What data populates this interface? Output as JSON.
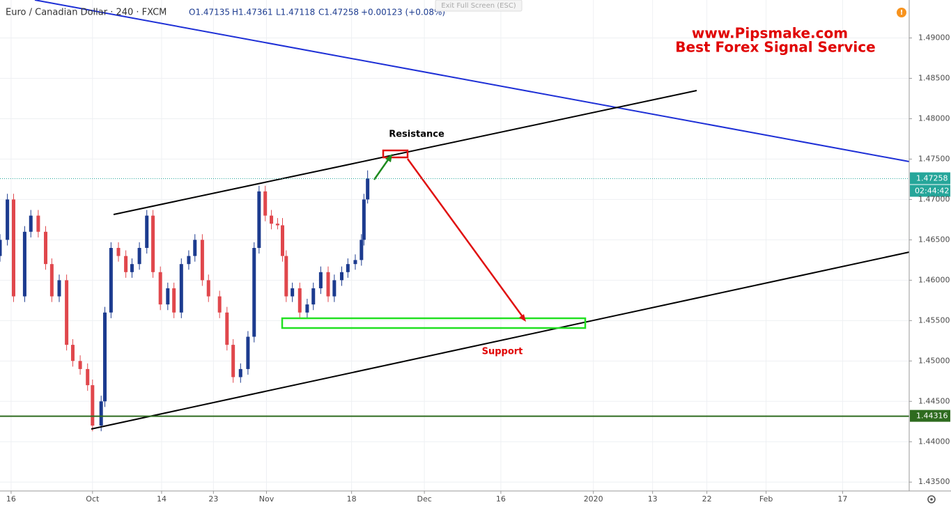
{
  "chart_data": {
    "type": "candlestick",
    "header": {
      "symbol": "Euro / Canadian Dollar · 240 · FXCM",
      "open": "O1.47135",
      "high": "H1.47361",
      "low": "L1.47118",
      "close": "C1.47258",
      "change": "+0.00123 (+0.08%)"
    },
    "exit_button": "Exit Full Screen (ESC)",
    "watermark": [
      "www.Pipsmake.com",
      "Best Forex Signal Service"
    ],
    "annotations": {
      "resistance": "Resistance",
      "support": "Support"
    },
    "up_color": "#1c3b8f",
    "down_color": "#e0474c",
    "grid": true,
    "xlim": [
      0,
      737
    ],
    "ylim": [
      1.4339,
      1.4947
    ],
    "xticks": [
      {
        "value": 9,
        "label": "16"
      },
      {
        "value": 75,
        "label": "Oct"
      },
      {
        "value": 131,
        "label": "14"
      },
      {
        "value": 173,
        "label": "23"
      },
      {
        "value": 216,
        "label": "Nov"
      },
      {
        "value": 285,
        "label": "18"
      },
      {
        "value": 344,
        "label": "Dec"
      },
      {
        "value": 406,
        "label": "16"
      },
      {
        "value": 481,
        "label": "2020"
      },
      {
        "value": 529,
        "label": "13"
      },
      {
        "value": 573,
        "label": "22"
      },
      {
        "value": 621,
        "label": "Feb"
      },
      {
        "value": 683,
        "label": "17"
      }
    ],
    "yticks": [
      {
        "value": 1.435,
        "label": "1.43500"
      },
      {
        "value": 1.44,
        "label": "1.44000"
      },
      {
        "value": 1.445,
        "label": "1.44500"
      },
      {
        "value": 1.45,
        "label": "1.45000"
      },
      {
        "value": 1.455,
        "label": "1.45500"
      },
      {
        "value": 1.46,
        "label": "1.46000"
      },
      {
        "value": 1.465,
        "label": "1.46500"
      },
      {
        "value": 1.47,
        "label": "1.47000"
      },
      {
        "value": 1.475,
        "label": "1.47500"
      },
      {
        "value": 1.48,
        "label": "1.48000"
      },
      {
        "value": 1.485,
        "label": "1.48500"
      },
      {
        "value": 1.49,
        "label": "1.49000"
      }
    ],
    "price_line": {
      "value": 1.47258,
      "countdown": "02:44:42",
      "color": "#26a69a"
    },
    "level_line": {
      "value": 1.44316,
      "color": "#2e6b1f"
    },
    "candles": [
      {
        "x": 0,
        "open": 1.463,
        "high": 1.4657,
        "low": 1.4623,
        "close": 1.465
      },
      {
        "x": 6,
        "open": 1.465,
        "high": 1.4707,
        "low": 1.4643,
        "close": 1.47
      },
      {
        "x": 11,
        "open": 1.47,
        "high": 1.4707,
        "low": 1.4573,
        "close": 1.458
      },
      {
        "x": 20,
        "open": 1.458,
        "high": 1.4667,
        "low": 1.4573,
        "close": 1.466
      },
      {
        "x": 25,
        "open": 1.466,
        "high": 1.4687,
        "low": 1.4653,
        "close": 1.468
      },
      {
        "x": 31,
        "open": 1.468,
        "high": 1.4687,
        "low": 1.4653,
        "close": 1.466
      },
      {
        "x": 37,
        "open": 1.466,
        "high": 1.4667,
        "low": 1.4613,
        "close": 1.462
      },
      {
        "x": 42,
        "open": 1.462,
        "high": 1.4627,
        "low": 1.4573,
        "close": 1.458
      },
      {
        "x": 48,
        "open": 1.458,
        "high": 1.4607,
        "low": 1.4573,
        "close": 1.46
      },
      {
        "x": 54,
        "open": 1.46,
        "high": 1.4607,
        "low": 1.4513,
        "close": 1.452
      },
      {
        "x": 59,
        "open": 1.452,
        "high": 1.4527,
        "low": 1.4493,
        "close": 1.45
      },
      {
        "x": 65,
        "open": 1.45,
        "high": 1.4507,
        "low": 1.4483,
        "close": 1.449
      },
      {
        "x": 71,
        "open": 1.449,
        "high": 1.4497,
        "low": 1.4463,
        "close": 1.447
      },
      {
        "x": 75,
        "open": 1.447,
        "high": 1.4477,
        "low": 1.4413,
        "close": 1.442
      },
      {
        "x": 82,
        "open": 1.442,
        "high": 1.4457,
        "low": 1.4413,
        "close": 1.445
      },
      {
        "x": 85,
        "open": 1.445,
        "high": 1.4567,
        "low": 1.4443,
        "close": 1.456
      },
      {
        "x": 90,
        "open": 1.456,
        "high": 1.4647,
        "low": 1.4553,
        "close": 1.464
      },
      {
        "x": 96,
        "open": 1.464,
        "high": 1.4647,
        "low": 1.4623,
        "close": 1.463
      },
      {
        "x": 102,
        "open": 1.463,
        "high": 1.4637,
        "low": 1.4603,
        "close": 1.461
      },
      {
        "x": 107,
        "open": 1.461,
        "high": 1.4627,
        "low": 1.4603,
        "close": 1.462
      },
      {
        "x": 113,
        "open": 1.462,
        "high": 1.4647,
        "low": 1.4613,
        "close": 1.464
      },
      {
        "x": 119,
        "open": 1.464,
        "high": 1.4687,
        "low": 1.4633,
        "close": 1.468
      },
      {
        "x": 124,
        "open": 1.468,
        "high": 1.4687,
        "low": 1.4603,
        "close": 1.461
      },
      {
        "x": 130,
        "open": 1.461,
        "high": 1.4617,
        "low": 1.4563,
        "close": 1.457
      },
      {
        "x": 136,
        "open": 1.457,
        "high": 1.4597,
        "low": 1.4563,
        "close": 1.459
      },
      {
        "x": 141,
        "open": 1.459,
        "high": 1.4597,
        "low": 1.4553,
        "close": 1.456
      },
      {
        "x": 147,
        "open": 1.456,
        "high": 1.4627,
        "low": 1.4553,
        "close": 1.462
      },
      {
        "x": 153,
        "open": 1.462,
        "high": 1.4637,
        "low": 1.4613,
        "close": 1.463
      },
      {
        "x": 158,
        "open": 1.463,
        "high": 1.4657,
        "low": 1.4623,
        "close": 1.465
      },
      {
        "x": 164,
        "open": 1.465,
        "high": 1.4657,
        "low": 1.4593,
        "close": 1.46
      },
      {
        "x": 169,
        "open": 1.46,
        "high": 1.4607,
        "low": 1.4573,
        "close": 1.458
      },
      {
        "x": 178,
        "open": 1.458,
        "high": 1.4587,
        "low": 1.4553,
        "close": 1.456
      },
      {
        "x": 184,
        "open": 1.456,
        "high": 1.4567,
        "low": 1.4513,
        "close": 1.452
      },
      {
        "x": 189,
        "open": 1.452,
        "high": 1.4527,
        "low": 1.4473,
        "close": 1.448
      },
      {
        "x": 195,
        "open": 1.448,
        "high": 1.4497,
        "low": 1.4473,
        "close": 1.449
      },
      {
        "x": 201,
        "open": 1.449,
        "high": 1.4537,
        "low": 1.4483,
        "close": 1.453
      },
      {
        "x": 206,
        "open": 1.453,
        "high": 1.4647,
        "low": 1.4523,
        "close": 1.464
      },
      {
        "x": 210,
        "open": 1.464,
        "high": 1.4717,
        "low": 1.4633,
        "close": 1.471
      },
      {
        "x": 215,
        "open": 1.471,
        "high": 1.4717,
        "low": 1.4673,
        "close": 1.468
      },
      {
        "x": 220,
        "open": 1.468,
        "high": 1.4687,
        "low": 1.4663,
        "close": 1.467
      },
      {
        "x": 225,
        "open": 1.467,
        "high": 1.4677,
        "low": 1.4663,
        "close": 1.4668
      },
      {
        "x": 229,
        "open": 1.4668,
        "high": 1.4677,
        "low": 1.4623,
        "close": 1.463
      },
      {
        "x": 232,
        "open": 1.463,
        "high": 1.4637,
        "low": 1.4573,
        "close": 1.458
      },
      {
        "x": 237,
        "open": 1.458,
        "high": 1.4597,
        "low": 1.4573,
        "close": 1.459
      },
      {
        "x": 243,
        "open": 1.459,
        "high": 1.4597,
        "low": 1.4553,
        "close": 1.456
      },
      {
        "x": 249,
        "open": 1.456,
        "high": 1.4577,
        "low": 1.4553,
        "close": 1.457
      },
      {
        "x": 254,
        "open": 1.457,
        "high": 1.4597,
        "low": 1.4563,
        "close": 1.459
      },
      {
        "x": 260,
        "open": 1.459,
        "high": 1.4617,
        "low": 1.4583,
        "close": 1.461
      },
      {
        "x": 266,
        "open": 1.461,
        "high": 1.4617,
        "low": 1.4573,
        "close": 1.458
      },
      {
        "x": 271,
        "open": 1.458,
        "high": 1.4607,
        "low": 1.4573,
        "close": 1.46
      },
      {
        "x": 277,
        "open": 1.46,
        "high": 1.4617,
        "low": 1.4593,
        "close": 1.461
      },
      {
        "x": 282,
        "open": 1.461,
        "high": 1.4627,
        "low": 1.4603,
        "close": 1.462
      },
      {
        "x": 288,
        "open": 1.462,
        "high": 1.4632,
        "low": 1.4613,
        "close": 1.4625
      },
      {
        "x": 293,
        "open": 1.4625,
        "high": 1.4657,
        "low": 1.4618,
        "close": 1.465
      },
      {
        "x": 295,
        "open": 1.465,
        "high": 1.4707,
        "low": 1.4643,
        "close": 1.47
      },
      {
        "x": 298,
        "open": 1.47,
        "high": 1.4736,
        "low": 1.4695,
        "close": 1.4726
      }
    ]
  }
}
